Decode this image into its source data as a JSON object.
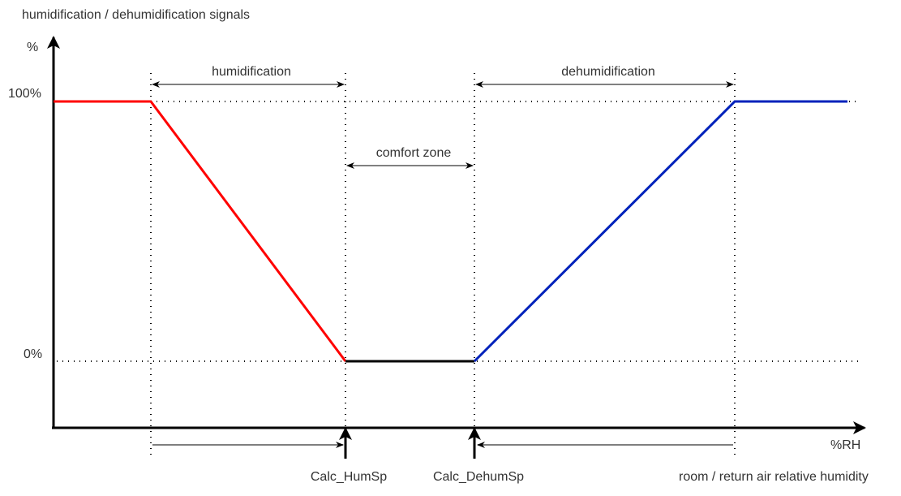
{
  "title": "humidification / dehumidification signals",
  "y_axis": {
    "unit": "%",
    "ticks": [
      "100%",
      "0%"
    ]
  },
  "x_axis": {
    "unit": "%RH",
    "label": "room / return air relative humidity"
  },
  "zones": {
    "humidification": "humidification",
    "comfort": "comfort zone",
    "dehumidification": "dehumidification"
  },
  "setpoints": {
    "hum": "Calc_HumSp",
    "dehum": "Calc_DehumSp"
  },
  "colors": {
    "humidification_signal": "#ff0000",
    "dehumidification_signal": "#0022bb",
    "axis": "#000000"
  }
}
